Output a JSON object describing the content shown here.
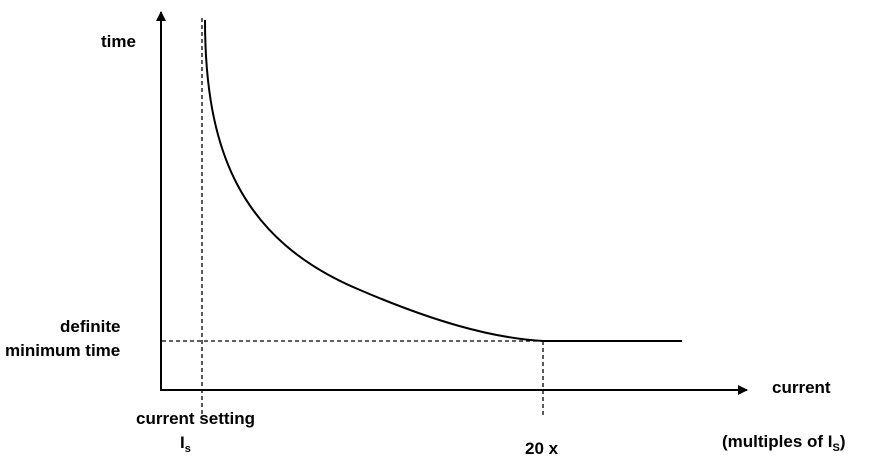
{
  "labels": {
    "y_axis": "time",
    "x_axis": "current",
    "dmt_line1": "definite",
    "dmt_line2": "minimum time",
    "setting": "current setting",
    "is_main": "I",
    "is_sub": "s",
    "twenty": "20 x",
    "multiples_pre": "(multiples of I",
    "multiples_sub": "S",
    "multiples_post": ")"
  },
  "colors": {
    "line": "#000000",
    "background": "#ffffff"
  }
}
